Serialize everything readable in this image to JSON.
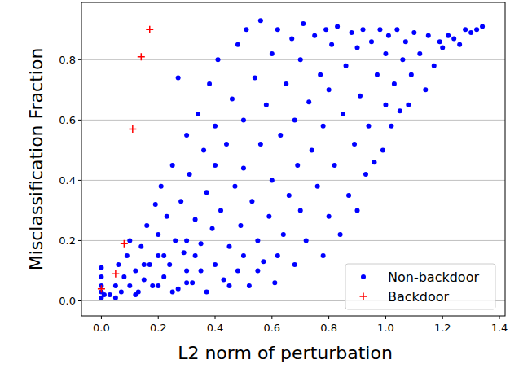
{
  "chart_data": {
    "type": "scatter",
    "x_label": "L2 norm of perturbation",
    "y_label": "Misclassification Fraction",
    "xlim": [
      -0.07,
      1.42
    ],
    "ylim": [
      -0.05,
      0.99
    ],
    "xticks": [
      {
        "value": 0,
        "label": "0.0"
      },
      0.2,
      0.4,
      0.6,
      0.8,
      {
        "value": 1,
        "label": "1.0"
      },
      1.2,
      1.4
    ],
    "yticks": [
      {
        "value": 0,
        "label": "0.0"
      },
      0.2,
      0.4,
      0.6,
      0.8
    ],
    "grid": "y",
    "legend": "lower right",
    "series": [
      {
        "name": "Non-backdoor",
        "color": "#0000ff",
        "marker": "circle",
        "x": [
          0,
          0,
          0,
          0,
          0,
          0.01,
          0.03,
          0.05,
          0.06,
          0.07,
          0.08,
          0.09,
          0.1,
          0.1,
          0.12,
          0.13,
          0.14,
          0.15,
          0.16,
          0.17,
          0.18,
          0.19,
          0.2,
          0.2,
          0.21,
          0.22,
          0.23,
          0.24,
          0.25,
          0.26,
          0.27,
          0.27,
          0.28,
          0.29,
          0.3,
          0.3,
          0.31,
          0.32,
          0.33,
          0.34,
          0.35,
          0.36,
          0.37,
          0.37,
          0.38,
          0.39,
          0.4,
          0.4,
          0.4,
          0.41,
          0.42,
          0.43,
          0.44,
          0.45,
          0.46,
          0.47,
          0.48,
          0.48,
          0.49,
          0.5,
          0.5,
          0.51,
          0.52,
          0.53,
          0.54,
          0.55,
          0.56,
          0.56,
          0.57,
          0.58,
          0.59,
          0.6,
          0.6,
          0.61,
          0.62,
          0.63,
          0.64,
          0.65,
          0.66,
          0.67,
          0.68,
          0.68,
          0.69,
          0.7,
          0.7,
          0.71,
          0.72,
          0.73,
          0.74,
          0.75,
          0.76,
          0.77,
          0.78,
          0.78,
          0.79,
          0.8,
          0.8,
          0.81,
          0.82,
          0.83,
          0.84,
          0.85,
          0.86,
          0.87,
          0.88,
          0.89,
          0.9,
          0.9,
          0.91,
          0.92,
          0.93,
          0.94,
          0.95,
          0.96,
          0.97,
          0.98,
          0.99,
          1.0,
          1.0,
          1.01,
          1.02,
          1.03,
          1.04,
          1.05,
          1.06,
          1.07,
          1.08,
          1.09,
          1.1,
          1.12,
          1.14,
          1.15,
          1.17,
          1.19,
          1.2,
          1.22,
          1.24,
          1.26,
          1.28,
          1.3,
          1.32,
          1.34,
          0.05,
          0.12,
          0.2,
          0.25,
          0.3,
          0.35,
          0.45,
          0.5,
          0.55,
          0.62,
          0.3,
          0.15,
          0.22,
          0.33
        ],
        "values": [
          0.01,
          0.03,
          0.05,
          0.08,
          0.11,
          0.02,
          0.02,
          0.05,
          0.12,
          0.03,
          0.08,
          0.15,
          0.05,
          0.2,
          0.1,
          0.03,
          0.18,
          0.07,
          0.25,
          0.12,
          0.05,
          0.32,
          0.15,
          0.22,
          0.38,
          0.08,
          0.28,
          0.12,
          0.45,
          0.2,
          0.74,
          0.04,
          0.33,
          0.16,
          0.55,
          0.1,
          0.42,
          0.06,
          0.27,
          0.62,
          0.19,
          0.5,
          0.03,
          0.36,
          0.72,
          0.24,
          0.12,
          0.45,
          0.58,
          0.8,
          0.3,
          0.07,
          0.52,
          0.18,
          0.67,
          0.38,
          0.85,
          0.1,
          0.25,
          0.6,
          0.44,
          0.9,
          0.05,
          0.33,
          0.74,
          0.2,
          0.93,
          0.52,
          0.13,
          0.65,
          0.28,
          0.82,
          0.4,
          0.06,
          0.9,
          0.55,
          0.22,
          0.72,
          0.35,
          0.87,
          0.12,
          0.6,
          0.45,
          0.8,
          0.3,
          0.92,
          0.2,
          0.66,
          0.5,
          0.88,
          0.38,
          0.75,
          0.15,
          0.58,
          0.9,
          0.28,
          0.7,
          0.85,
          0.45,
          0.91,
          0.22,
          0.62,
          0.78,
          0.35,
          0.89,
          0.52,
          0.3,
          0.84,
          0.68,
          0.9,
          0.42,
          0.58,
          0.86,
          0.46,
          0.75,
          0.9,
          0.5,
          0.65,
          0.82,
          0.88,
          0.58,
          0.72,
          0.9,
          0.63,
          0.8,
          0.86,
          0.65,
          0.75,
          0.89,
          0.82,
          0.7,
          0.88,
          0.78,
          0.86,
          0.84,
          0.88,
          0.87,
          0.85,
          0.9,
          0.89,
          0.9,
          0.91,
          0.01,
          0.02,
          0.05,
          0.03,
          0.2,
          0.1,
          0.05,
          0.15,
          0.1,
          0.15,
          0.06,
          0.12,
          0.15,
          0.15
        ]
      },
      {
        "name": "Backdoor",
        "color": "#ff0000",
        "marker": "plus",
        "x": [
          0,
          0.05,
          0.08,
          0.11,
          0.14,
          0.17
        ],
        "values": [
          0.04,
          0.09,
          0.19,
          0.57,
          0.81,
          0.9
        ]
      }
    ]
  }
}
